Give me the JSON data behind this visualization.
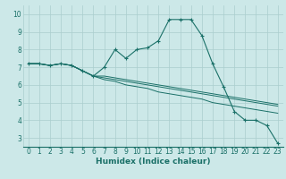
{
  "xlabel": "Humidex (Indice chaleur)",
  "background_color": "#cce8e8",
  "grid_color": "#aacece",
  "line_color": "#1a7068",
  "xlim": [
    -0.5,
    23.5
  ],
  "ylim": [
    2.5,
    10.5
  ],
  "xticks": [
    0,
    1,
    2,
    3,
    4,
    5,
    6,
    7,
    8,
    9,
    10,
    11,
    12,
    13,
    14,
    15,
    16,
    17,
    18,
    19,
    20,
    21,
    22,
    23
  ],
  "yticks": [
    3,
    4,
    5,
    6,
    7,
    8,
    9,
    10
  ],
  "series": [
    {
      "x": [
        0,
        1,
        2,
        3,
        4,
        5,
        6,
        7,
        8,
        9,
        10,
        11,
        12,
        13,
        14,
        15,
        16,
        17,
        18,
        19,
        20,
        21,
        22,
        23
      ],
      "y": [
        7.2,
        7.2,
        7.1,
        7.2,
        7.1,
        6.8,
        6.5,
        7.0,
        8.0,
        7.5,
        8.0,
        8.1,
        8.5,
        9.7,
        9.7,
        9.7,
        8.8,
        7.2,
        5.9,
        4.5,
        4.0,
        4.0,
        3.7,
        2.7
      ],
      "marker": true
    },
    {
      "x": [
        0,
        1,
        2,
        3,
        4,
        5,
        6,
        7,
        8,
        9,
        10,
        11,
        12,
        13,
        14,
        15,
        16,
        17,
        18,
        19,
        20,
        21,
        22,
        23
      ],
      "y": [
        7.2,
        7.2,
        7.1,
        7.2,
        7.1,
        6.8,
        6.5,
        6.5,
        6.4,
        6.3,
        6.2,
        6.1,
        6.0,
        5.9,
        5.8,
        5.7,
        5.6,
        5.5,
        5.4,
        5.3,
        5.2,
        5.1,
        5.0,
        4.9
      ],
      "marker": false
    },
    {
      "x": [
        0,
        1,
        2,
        3,
        4,
        5,
        6,
        7,
        8,
        9,
        10,
        11,
        12,
        13,
        14,
        15,
        16,
        17,
        18,
        19,
        20,
        21,
        22,
        23
      ],
      "y": [
        7.2,
        7.2,
        7.1,
        7.2,
        7.1,
        6.8,
        6.5,
        6.4,
        6.3,
        6.2,
        6.1,
        6.0,
        5.9,
        5.8,
        5.7,
        5.6,
        5.5,
        5.4,
        5.3,
        5.2,
        5.1,
        5.0,
        4.9,
        4.8
      ],
      "marker": false
    },
    {
      "x": [
        0,
        1,
        2,
        3,
        4,
        5,
        6,
        7,
        8,
        9,
        10,
        11,
        12,
        13,
        14,
        15,
        16,
        17,
        18,
        19,
        20,
        21,
        22,
        23
      ],
      "y": [
        7.2,
        7.2,
        7.1,
        7.2,
        7.1,
        6.8,
        6.5,
        6.3,
        6.2,
        6.0,
        5.9,
        5.8,
        5.6,
        5.5,
        5.4,
        5.3,
        5.2,
        5.0,
        4.9,
        4.8,
        4.7,
        4.6,
        4.5,
        4.4
      ],
      "marker": false
    }
  ],
  "tick_fontsize": 5.5,
  "xlabel_fontsize": 6.5,
  "xlabel_bold": true
}
